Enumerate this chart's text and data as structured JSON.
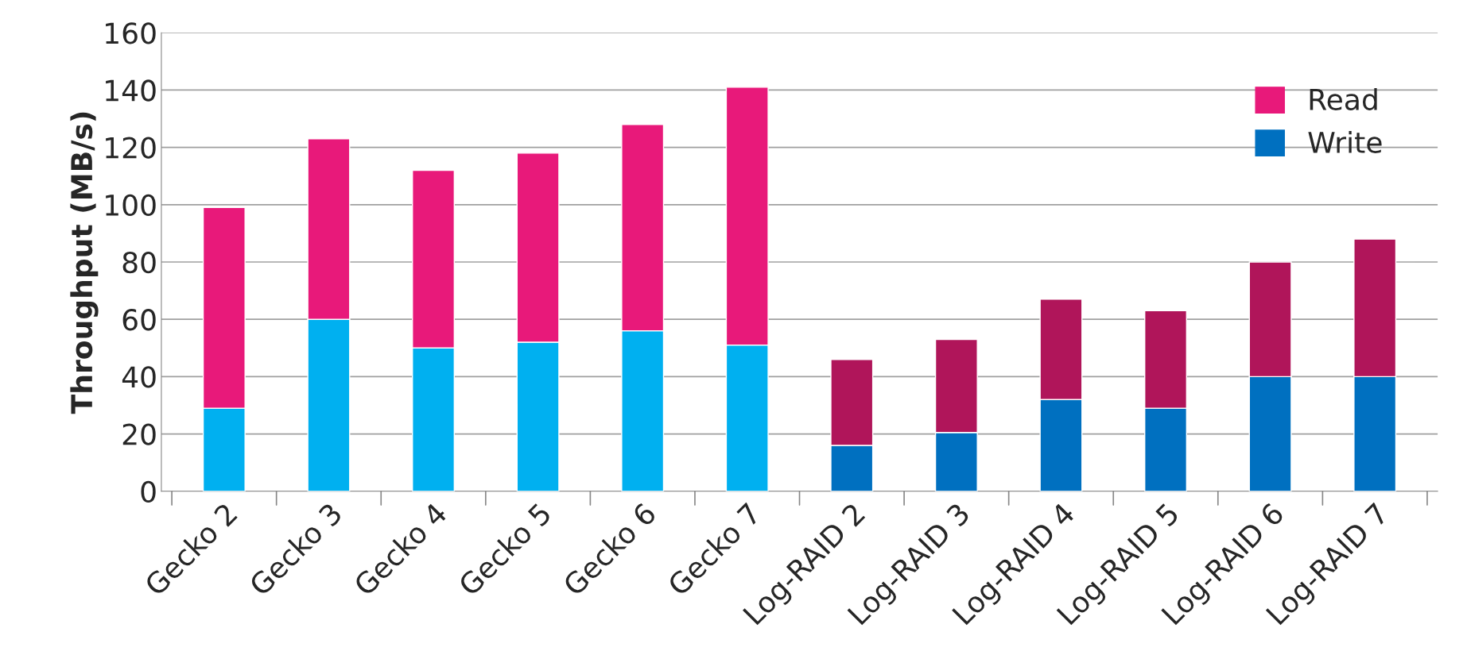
{
  "chart_data": {
    "type": "bar",
    "stacked": true,
    "ylabel": "Throughput (MB/s)",
    "categories": [
      "Gecko 2",
      "Gecko 3",
      "Gecko 4",
      "Gecko 5",
      "Gecko 6",
      "Gecko 7",
      "Log-RAID 2",
      "Log-RAID 3",
      "Log-RAID 4",
      "Log-RAID 5",
      "Log-RAID 6",
      "Log-RAID 7"
    ],
    "series": [
      {
        "name": "Write",
        "color": "#0070c0",
        "colors": [
          "#00b0f0",
          "#00b0f0",
          "#00b0f0",
          "#00b0f0",
          "#00b0f0",
          "#00b0f0",
          "#0070c0",
          "#0070c0",
          "#0070c0",
          "#0070c0",
          "#0070c0",
          "#0070c0"
        ],
        "values": [
          29,
          60,
          50,
          52,
          56,
          51,
          16,
          20.5,
          32,
          29,
          40,
          40
        ]
      },
      {
        "name": "Read",
        "color": "#e8197a",
        "colors": [
          "#e8197a",
          "#e8197a",
          "#e8197a",
          "#e8197a",
          "#e8197a",
          "#e8197a",
          "#b0155a",
          "#b0155a",
          "#b0155a",
          "#b0155a",
          "#b0155a",
          "#b0155a"
        ],
        "values": [
          70,
          63,
          62,
          66,
          72,
          90,
          30,
          32.5,
          35,
          34,
          40,
          48
        ]
      }
    ],
    "ylim": [
      0,
      160
    ],
    "yticks": [
      0,
      20,
      40,
      60,
      80,
      100,
      120,
      140,
      160
    ],
    "grid": "y",
    "legend": "top right"
  }
}
